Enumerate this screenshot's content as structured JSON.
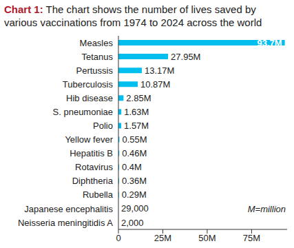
{
  "chart_data": {
    "type": "bar",
    "orientation": "horizontal",
    "title": "Chart 1:",
    "subtitle": "The chart shows the number of lives saved by various vaccinations from 1974 to 2024 across the world",
    "annotation": "M=million",
    "categories": [
      "Measles",
      "Tetanus",
      "Pertussis",
      "Tuberculosis",
      "Hib disease",
      "S. pneumoniae",
      "Polio",
      "Yellow fever",
      "Hepatitis B",
      "Rotavirus",
      "Diphtheria",
      "Rubella",
      "Japanese encephalitis",
      "Neisseria meningitidis A"
    ],
    "values": [
      93.7,
      27.95,
      13.17,
      10.87,
      2.85,
      1.63,
      1.57,
      0.55,
      0.46,
      0.4,
      0.36,
      0.29,
      0.029,
      0.002
    ],
    "value_labels": [
      "93.7M",
      "27.95M",
      "13.17M",
      "10.87M",
      "2.85M",
      "1.63M",
      "1.57M",
      "0.55M",
      "0.46M",
      "0.4M",
      "0.36M",
      "0.29M",
      "29,000",
      "2,000"
    ],
    "color": "#00bfef",
    "xlim": [
      0,
      95
    ],
    "xticks": [
      0,
      {
        "value": 25,
        "label": "25M"
      },
      {
        "value": 50,
        "label": "50M"
      },
      {
        "value": 75,
        "label": "75M"
      }
    ],
    "data_labels": true,
    "grid": false
  }
}
